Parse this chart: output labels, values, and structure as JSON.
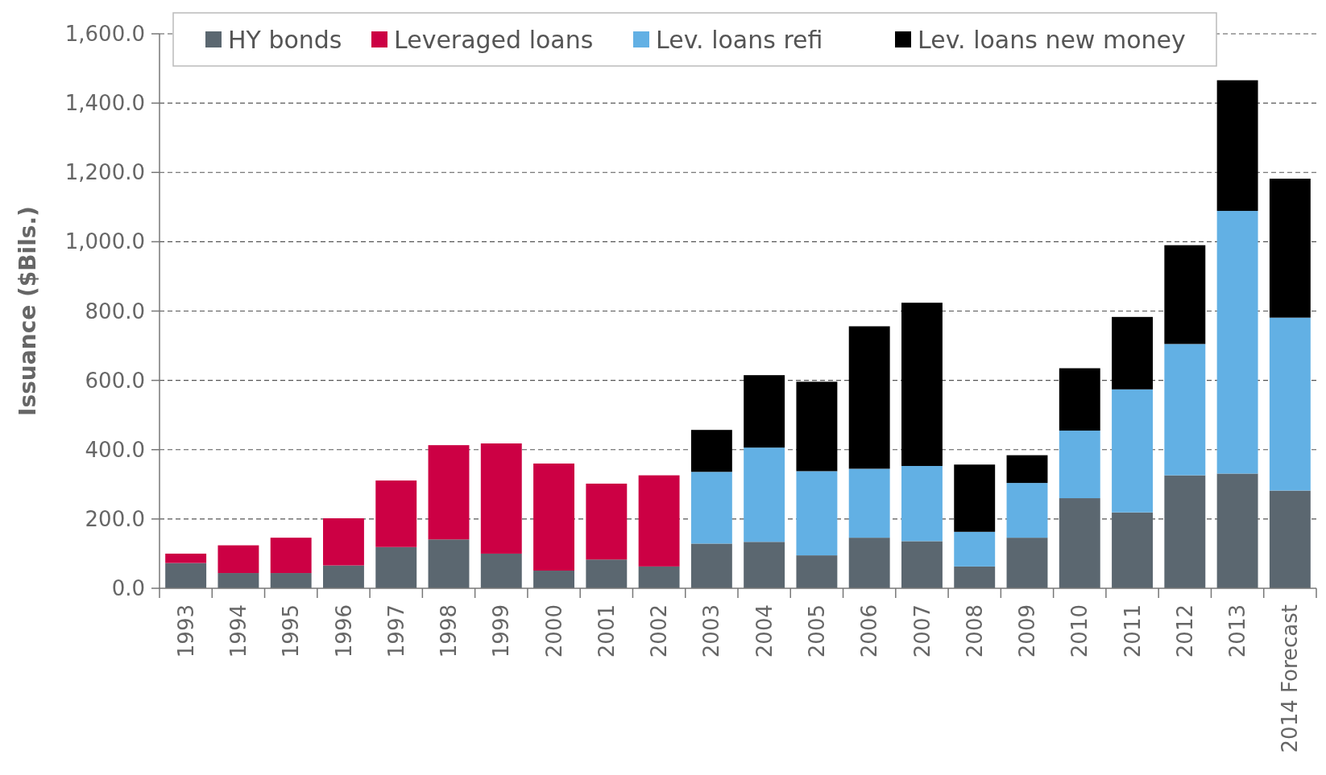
{
  "chart_data": {
    "type": "bar",
    "stacked": true,
    "ylabel": "Issuance ($Bils.)",
    "categories": [
      "1993",
      "1994",
      "1995",
      "1996",
      "1997",
      "1998",
      "1999",
      "2000",
      "2001",
      "2002",
      "2003",
      "2004",
      "2005",
      "2006",
      "2007",
      "2008",
      "2009",
      "2010",
      "2011",
      "2012",
      "2013",
      "2014 Forecast"
    ],
    "series": [
      {
        "name": "HY bonds",
        "color": "#5b6770",
        "values": [
          73,
          44,
          44,
          66,
          119,
          141,
          100,
          51,
          83,
          63,
          129,
          134,
          95,
          146,
          136,
          63,
          146,
          260,
          219,
          326,
          331,
          282
        ]
      },
      {
        "name": "Leveraged loans",
        "color": "#cc0044",
        "values": [
          27,
          80,
          102,
          136,
          192,
          272,
          318,
          309,
          219,
          263,
          null,
          null,
          null,
          null,
          null,
          null,
          null,
          null,
          null,
          null,
          null,
          null
        ]
      },
      {
        "name": "Lev. loans refi",
        "color": "#62b0e4",
        "values": [
          null,
          null,
          null,
          null,
          null,
          null,
          null,
          null,
          null,
          null,
          207,
          272,
          243,
          199,
          217,
          100,
          158,
          195,
          355,
          379,
          758,
          499
        ]
      },
      {
        "name": "Lev. loans new money",
        "color": "#000000",
        "values": [
          null,
          null,
          null,
          null,
          null,
          null,
          null,
          null,
          null,
          null,
          121,
          209,
          258,
          411,
          471,
          194,
          80,
          180,
          209,
          285,
          377,
          401
        ]
      }
    ],
    "ylim": [
      0,
      1600
    ],
    "yticks": [
      {
        "value": 0,
        "label": "0.0"
      },
      {
        "value": 200,
        "label": "200.0"
      },
      {
        "value": 400,
        "label": "400.0"
      },
      {
        "value": 600,
        "label": "600.0"
      },
      {
        "value": 800,
        "label": "800.0"
      },
      {
        "value": 1000,
        "label": "1,000.0"
      },
      {
        "value": 1200,
        "label": "1,200.0"
      },
      {
        "value": 1400,
        "label": "1,400.0"
      },
      {
        "value": 1600,
        "label": "1,600.0"
      }
    ],
    "grid": "y",
    "legend": "top"
  }
}
